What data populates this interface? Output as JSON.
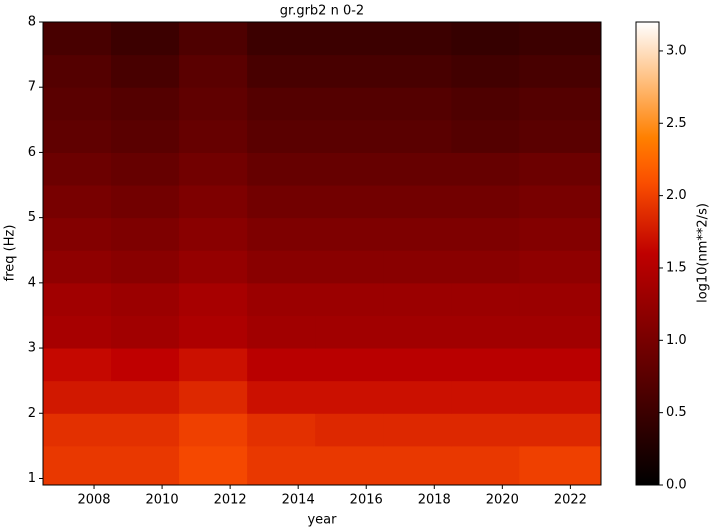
{
  "chart_data": {
    "type": "heatmap",
    "title": "gr.grb2 n 0-2",
    "x_label": "year",
    "y_label": "freq (Hz)",
    "colorbar_label": "log10(nm**2/s)",
    "colormap": "gist_heat",
    "x_bins": [
      2006.5,
      2008.5,
      2010.5,
      2012.5,
      2014.5,
      2016.5,
      2018.5,
      2020.5,
      2022.9
    ],
    "y_bins": [
      0.9,
      1.5,
      2,
      2.5,
      3,
      3.5,
      4,
      4.5,
      5,
      5.5,
      6,
      6.5,
      7,
      7.5,
      8
    ],
    "z": [
      [
        1.95,
        1.95,
        2.05,
        1.95,
        1.95,
        1.95,
        1.95,
        2.0
      ],
      [
        1.9,
        1.9,
        2.0,
        1.9,
        1.85,
        1.85,
        1.85,
        1.85
      ],
      [
        1.75,
        1.75,
        1.85,
        1.7,
        1.7,
        1.7,
        1.7,
        1.7
      ],
      [
        1.65,
        1.6,
        1.7,
        1.55,
        1.55,
        1.55,
        1.55,
        1.55
      ],
      [
        1.4,
        1.35,
        1.45,
        1.35,
        1.35,
        1.35,
        1.35,
        1.35
      ],
      [
        1.35,
        1.3,
        1.4,
        1.3,
        1.3,
        1.3,
        1.3,
        1.3
      ],
      [
        1.2,
        1.15,
        1.25,
        1.15,
        1.15,
        1.15,
        1.15,
        1.2
      ],
      [
        1.1,
        1.05,
        1.15,
        1.05,
        1.05,
        1.05,
        1.05,
        1.1
      ],
      [
        1.0,
        0.95,
        1.05,
        0.95,
        0.95,
        0.95,
        0.95,
        1.0
      ],
      [
        0.9,
        0.85,
        0.95,
        0.85,
        0.85,
        0.85,
        0.85,
        0.9
      ],
      [
        0.8,
        0.75,
        0.85,
        0.75,
        0.75,
        0.75,
        0.7,
        0.75
      ],
      [
        0.75,
        0.7,
        0.8,
        0.7,
        0.7,
        0.7,
        0.65,
        0.7
      ],
      [
        0.7,
        0.6,
        0.75,
        0.6,
        0.6,
        0.6,
        0.55,
        0.6
      ],
      [
        0.6,
        0.5,
        0.65,
        0.5,
        0.5,
        0.5,
        0.45,
        0.5
      ]
    ],
    "xlim": [
      2006.5,
      2022.9
    ],
    "xticks": [
      2008,
      2010,
      2012,
      2014,
      2016,
      2018,
      2020,
      2022
    ],
    "ylim": [
      0.9,
      8
    ],
    "yticks": [
      1,
      2,
      3,
      4,
      5,
      6,
      7,
      8
    ],
    "clim": [
      0,
      3.2
    ],
    "cticks": [
      {
        "value": 0,
        "label": "0.0"
      },
      {
        "value": 0.5,
        "label": "0.5"
      },
      {
        "value": 1,
        "label": "1.0"
      },
      {
        "value": 1.5,
        "label": "1.5"
      },
      {
        "value": 2,
        "label": "2.0"
      },
      {
        "value": 2.5,
        "label": "2.5"
      },
      {
        "value": 3,
        "label": "3.0"
      }
    ]
  }
}
